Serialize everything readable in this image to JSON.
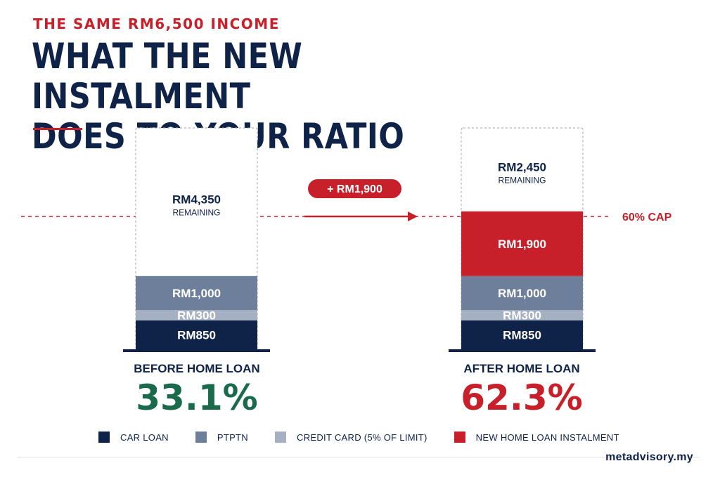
{
  "header": {
    "eyebrow": "THE SAME RM6,500 INCOME",
    "title_line1": "WHAT THE NEW INSTALMENT",
    "title_line2": "DOES TO YOUR RATIO"
  },
  "colors": {
    "navy": "#0f2348",
    "accent_red": "#c8202a",
    "green": "#1a6b4c",
    "car_loan": "#0f2348",
    "ptptn": "#6e7f9c",
    "credit_card": "#a5b0c2",
    "home_loan": "#c8202a"
  },
  "chart_data": {
    "type": "bar",
    "stacked": true,
    "income": 6500,
    "cap_percent": 60,
    "cap_label": "60% CAP",
    "categories": [
      "BEFORE HOME LOAN",
      "AFTER HOME LOAN"
    ],
    "series": [
      {
        "name": "CAR LOAN",
        "values": [
          850,
          850
        ],
        "labels": [
          "RM850",
          "RM850"
        ],
        "color": "#0f2348"
      },
      {
        "name": "CREDIT CARD (5% OF LIMIT)",
        "values": [
          300,
          300
        ],
        "labels": [
          "RM300",
          "RM300"
        ],
        "color": "#a5b0c2"
      },
      {
        "name": "PTPTN",
        "values": [
          1000,
          1000
        ],
        "labels": [
          "RM1,000",
          "RM1,000"
        ],
        "color": "#6e7f9c"
      },
      {
        "name": "NEW HOME LOAN INSTALMENT",
        "values": [
          0,
          1900
        ],
        "labels": [
          "",
          "RM1,900"
        ],
        "color": "#c8202a"
      }
    ],
    "remaining": [
      {
        "amount": "RM4,350",
        "label": "REMAINING"
      },
      {
        "amount": "RM2,450",
        "label": "REMAINING"
      }
    ],
    "ratios": [
      "33.1%",
      "62.3%"
    ],
    "ratio_colors": [
      "#1a6b4c",
      "#c8202a"
    ],
    "change_label": "+ RM1,900"
  },
  "legend": [
    {
      "label": "CAR LOAN",
      "color": "#0f2348"
    },
    {
      "label": "PTPTN",
      "color": "#6e7f9c"
    },
    {
      "label": "CREDIT CARD (5% OF LIMIT)",
      "color": "#a5b0c2"
    },
    {
      "label": "NEW HOME LOAN INSTALMENT",
      "color": "#c8202a"
    }
  ],
  "footer": {
    "brand": "metadvisory.my"
  }
}
